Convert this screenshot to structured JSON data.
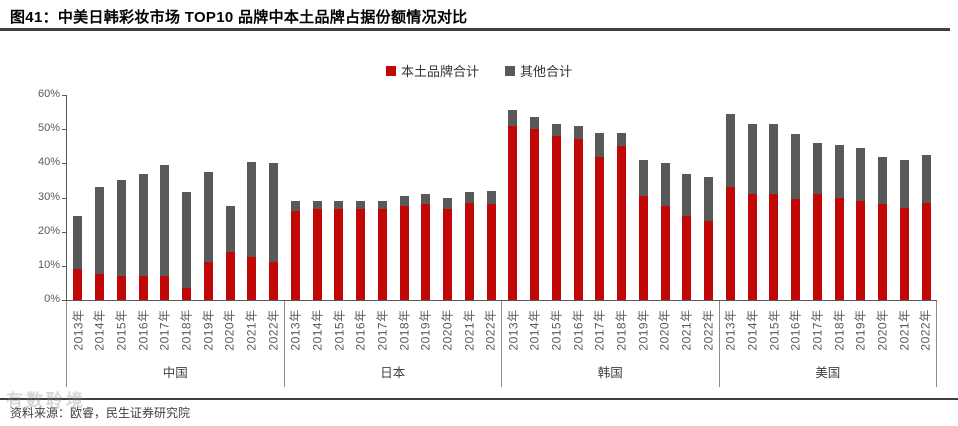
{
  "header": {
    "title": "图41：中美日韩彩妆市场 TOP10 品牌中本土品牌占据份额情况对比"
  },
  "footer": {
    "source": "资料来源：欧睿，民生证券研究院",
    "watermark": "有数聆境"
  },
  "chart_data": {
    "type": "bar",
    "stacked": true,
    "title": "图41：中美日韩彩妆市场 TOP10 品牌中本土品牌占据份额情况对比",
    "xlabel": "",
    "ylabel": "",
    "ylim": [
      0,
      60
    ],
    "grid": false,
    "legend_position": "top-center",
    "yticks": [
      "0%",
      "10%",
      "20%",
      "30%",
      "40%",
      "50%",
      "60%"
    ],
    "years": [
      "2013年",
      "2014年",
      "2015年",
      "2016年",
      "2017年",
      "2018年",
      "2019年",
      "2020年",
      "2021年",
      "2022年"
    ],
    "legend": [
      {
        "name": "本土品牌合计",
        "color": "#C20707"
      },
      {
        "name": "其他合计",
        "color": "#595959"
      }
    ],
    "groups": [
      {
        "label": "中国",
        "local": [
          9,
          7.5,
          7,
          7,
          7,
          3.5,
          11,
          14,
          12.5,
          11
        ],
        "other": [
          15.5,
          25.5,
          28,
          30,
          32.5,
          28,
          26.5,
          13.5,
          28,
          29
        ]
      },
      {
        "label": "日本",
        "local": [
          26,
          26.5,
          26.5,
          26.5,
          26.5,
          27.5,
          28,
          26.5,
          28.5,
          28
        ],
        "other": [
          3,
          2.5,
          2.5,
          2.5,
          2.5,
          3,
          3,
          3.5,
          3,
          4
        ]
      },
      {
        "label": "韩国",
        "local": [
          51,
          50,
          48,
          47,
          42,
          45,
          30.5,
          27.5,
          24.5,
          23
        ],
        "other": [
          4.5,
          3.5,
          3.5,
          4,
          7,
          4,
          10.5,
          12.5,
          12.5,
          13
        ]
      },
      {
        "label": "美国",
        "local": [
          33,
          31,
          31,
          29.5,
          31,
          30,
          29,
          28,
          27,
          28.5
        ],
        "other": [
          21.5,
          20.5,
          20.5,
          19,
          15,
          15.5,
          15.5,
          14,
          14,
          14
        ]
      }
    ]
  }
}
